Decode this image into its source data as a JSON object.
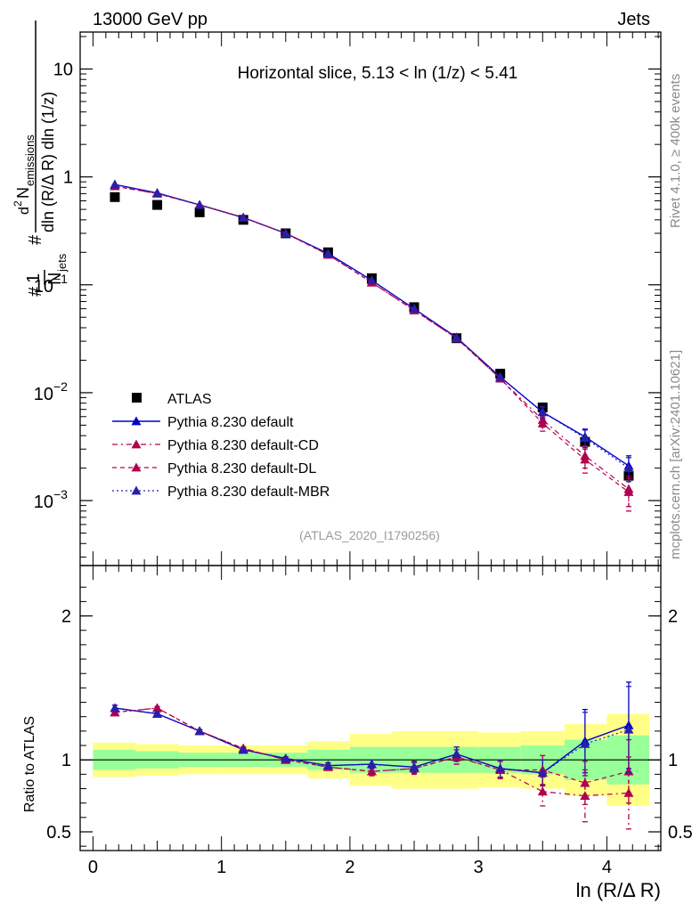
{
  "header": {
    "left": "13000 GeV pp",
    "right": "Jets",
    "slice_title": "Horizontal slice, 5.13 < ln (1/z) < 5.41",
    "analysis_id": "(ATLAS_2020_I1790256)",
    "side_rivet": "Rivet 4.1.0, ≥ 400k events",
    "side_site": "mcplots.cern.ch [arXiv:2401.10621]"
  },
  "colors": {
    "atlas": "#000000",
    "default": "#0000cc",
    "cd": "#b0004e",
    "dl": "#b0004e",
    "mbr": "#2a1faa",
    "band_inner": "#99ff99",
    "band_outer": "#ffff88"
  },
  "chart_data": [
    {
      "type": "line",
      "scale": "log",
      "title": "Horizontal slice, 5.13 < ln (1/z) < 5.41",
      "ylabel": "1/N_jets dN_emissions / (dln(R/ΔR) dln(1/z))",
      "ylim": [
        0.00025,
        22
      ],
      "xlim": [
        -0.1,
        4.42
      ],
      "yticks": [
        {
          "value": 0.001,
          "base": "10",
          "exp": "−3"
        },
        {
          "value": 0.01,
          "base": "10",
          "exp": "−2"
        },
        {
          "value": 0.1,
          "base": "10",
          "exp": "−1"
        },
        {
          "value": 1,
          "label": "1"
        },
        {
          "value": 10,
          "label": "10"
        }
      ],
      "x": [
        0.17,
        0.5,
        0.83,
        1.17,
        1.5,
        1.83,
        2.17,
        2.5,
        2.83,
        3.17,
        3.5,
        3.83,
        4.17
      ],
      "atlas": [
        0.65,
        0.55,
        0.47,
        0.4,
        0.3,
        0.2,
        0.115,
        0.062,
        0.032,
        0.015,
        0.0073,
        0.0035,
        0.0017
      ],
      "series": [
        {
          "key": "default",
          "name": "Pythia 8.230 default",
          "values": [
            0.85,
            0.71,
            0.55,
            0.42,
            0.3,
            0.195,
            0.11,
            0.06,
            0.0325,
            0.014,
            0.0066,
            0.0039,
            0.0021
          ],
          "errors": [
            0,
            0,
            0,
            0,
            0,
            0,
            0,
            0,
            0,
            0,
            0.0008,
            0.0007,
            0.0005
          ]
        },
        {
          "key": "cd",
          "name": "Pythia 8.230 default-CD",
          "values": [
            0.82,
            0.7,
            0.55,
            0.42,
            0.3,
            0.19,
            0.105,
            0.058,
            0.032,
            0.0135,
            0.0056,
            0.0026,
            0.00128
          ],
          "errors": [
            0,
            0,
            0,
            0,
            0,
            0,
            0,
            0,
            0,
            0,
            0.0008,
            0.0006,
            0.0004
          ]
        },
        {
          "key": "dl",
          "name": "Pythia 8.230 default-DL",
          "values": [
            0.82,
            0.7,
            0.55,
            0.42,
            0.3,
            0.19,
            0.105,
            0.058,
            0.032,
            0.0135,
            0.0052,
            0.0024,
            0.0012
          ],
          "errors": [
            0,
            0,
            0,
            0,
            0,
            0,
            0,
            0,
            0,
            0,
            0.0008,
            0.0006,
            0.0004
          ]
        },
        {
          "key": "mbr",
          "name": "Pythia 8.230 default-MBR",
          "values": [
            0.85,
            0.71,
            0.55,
            0.42,
            0.3,
            0.195,
            0.11,
            0.06,
            0.0325,
            0.014,
            0.0066,
            0.0038,
            0.002
          ],
          "errors": [
            0,
            0,
            0,
            0,
            0,
            0,
            0,
            0,
            0,
            0,
            0.0008,
            0.0007,
            0.0005
          ]
        }
      ],
      "legend": [
        {
          "key": "atlas",
          "label": "ATLAS"
        },
        {
          "key": "default",
          "label": "Pythia 8.230 default"
        },
        {
          "key": "cd",
          "label": "Pythia 8.230 default-CD"
        },
        {
          "key": "dl",
          "label": "Pythia 8.230 default-DL"
        },
        {
          "key": "mbr",
          "label": "Pythia 8.230 default-MBR"
        }
      ]
    },
    {
      "type": "line",
      "ylabel": "Ratio to ATLAS",
      "xlabel": "ln (R/Δ R)",
      "ylim": [
        0.37,
        2.35
      ],
      "xlim": [
        -0.1,
        4.42
      ],
      "xticks": [
        "0",
        "1",
        "2",
        "3",
        "4"
      ],
      "xtick_values": [
        0,
        1,
        2,
        3,
        4
      ],
      "yticks": [
        "0.5",
        "1",
        "2"
      ],
      "ytick_values": [
        0.5,
        1,
        2
      ],
      "bin_edges": [
        0,
        0.33,
        0.67,
        1.0,
        1.33,
        1.67,
        2.0,
        2.33,
        2.67,
        3.0,
        3.33,
        3.67,
        4.0,
        4.33
      ],
      "band_inner": [
        0.07,
        0.06,
        0.05,
        0.05,
        0.05,
        0.07,
        0.09,
        0.09,
        0.09,
        0.09,
        0.1,
        0.14,
        0.17
      ],
      "band_outer": [
        0.12,
        0.11,
        0.1,
        0.1,
        0.1,
        0.13,
        0.18,
        0.2,
        0.2,
        0.19,
        0.2,
        0.25,
        0.32
      ],
      "series": [
        {
          "key": "default",
          "values": [
            1.36,
            1.32,
            1.2,
            1.07,
            1.01,
            0.96,
            0.97,
            0.95,
            1.04,
            0.94,
            0.91,
            1.13,
            1.24
          ],
          "errors": [
            0.02,
            0.01,
            0.01,
            0.01,
            0.01,
            0.02,
            0.03,
            0.04,
            0.05,
            0.06,
            0.09,
            0.22,
            0.3
          ]
        },
        {
          "key": "cd",
          "values": [
            1.33,
            1.36,
            1.2,
            1.08,
            1.0,
            0.95,
            0.92,
            0.94,
            1.02,
            0.93,
            0.78,
            0.75,
            0.77
          ],
          "errors": [
            0.02,
            0.01,
            0.01,
            0.01,
            0.01,
            0.02,
            0.03,
            0.04,
            0.05,
            0.06,
            0.1,
            0.18,
            0.25
          ]
        },
        {
          "key": "dl",
          "values": [
            1.33,
            1.36,
            1.2,
            1.08,
            1.0,
            0.95,
            0.92,
            0.94,
            1.02,
            0.93,
            0.93,
            0.84,
            0.92
          ],
          "errors": [
            0.02,
            0.01,
            0.01,
            0.01,
            0.01,
            0.02,
            0.03,
            0.04,
            0.05,
            0.06,
            0.1,
            0.15,
            0.22
          ]
        },
        {
          "key": "mbr",
          "values": [
            1.36,
            1.32,
            1.2,
            1.07,
            1.01,
            0.96,
            0.97,
            0.95,
            1.04,
            0.94,
            0.91,
            1.11,
            1.21
          ],
          "errors": [
            0.02,
            0.01,
            0.01,
            0.01,
            0.01,
            0.02,
            0.03,
            0.04,
            0.05,
            0.06,
            0.09,
            0.22,
            0.3
          ]
        }
      ]
    }
  ]
}
